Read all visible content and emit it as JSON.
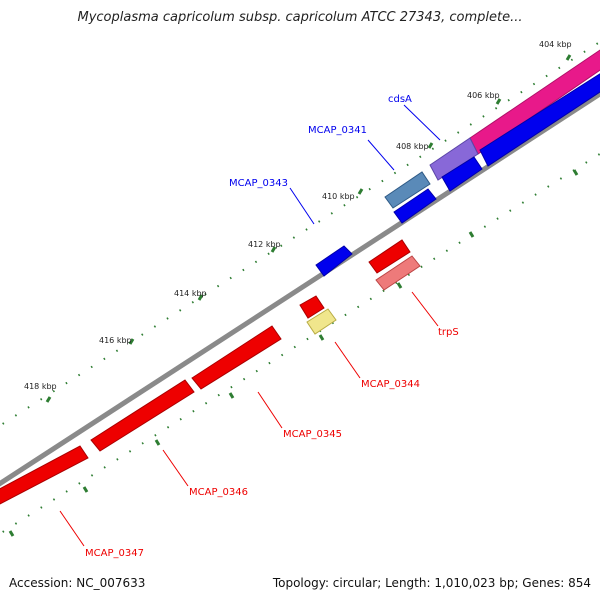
{
  "title": "Mycoplasma capricolum subsp. capricolum ATCC 27343, complete...",
  "footer": {
    "accession": "Accession: NC_007633",
    "summary": "Topology: circular; Length: 1,010,023 bp; Genes: 854"
  },
  "colors": {
    "backbone": "#808080",
    "tick": "#2e7d32",
    "forward_gene": "#0000ee",
    "reverse_gene": "#ee0000",
    "forward_cds_light": "#5a8ab8",
    "reverse_cds_light": "#ee7a7a",
    "pink_feature": "#e8198a",
    "purple_feature": "#8868d8",
    "yellow_feature": "#f0e68c"
  },
  "ticks": {
    "major_labels": [
      "404 kbp",
      "406 kbp",
      "408 kbp",
      "410 kbp",
      "412 kbp",
      "414 kbp",
      "416 kbp",
      "418 kbp"
    ]
  },
  "genes": {
    "forward": [
      {
        "name": "cdsA"
      },
      {
        "name": "MCAP_0341"
      },
      {
        "name": "MCAP_0343"
      }
    ],
    "reverse": [
      {
        "name": "trpS"
      },
      {
        "name": "MCAP_0344"
      },
      {
        "name": "MCAP_0345"
      },
      {
        "name": "MCAP_0346"
      },
      {
        "name": "MCAP_0347"
      }
    ]
  }
}
